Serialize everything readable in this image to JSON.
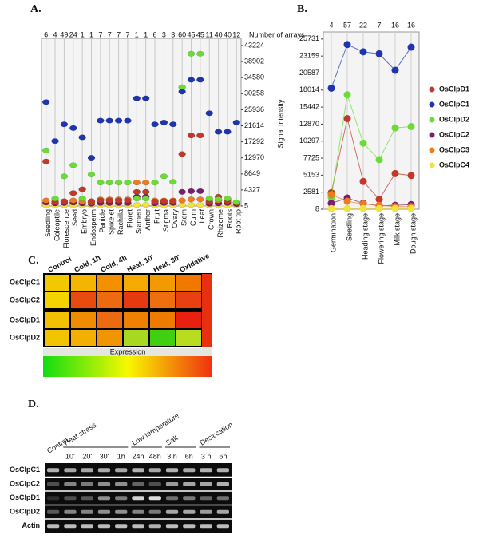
{
  "chart_data": [
    {
      "type": "dot",
      "panel": "A.",
      "top_axis_label": "Number of arrays",
      "array_counts": [
        6,
        4,
        49,
        24,
        1,
        1,
        7,
        7,
        7,
        7,
        1,
        1,
        6,
        3,
        3,
        60,
        45,
        45,
        11,
        40,
        40,
        12
      ],
      "categories": [
        "Seedling",
        "Coleoptile",
        "Florescence",
        "Seed",
        "Embryo",
        "Endosperm",
        "Panicle",
        "Spikelet",
        "Rachilla",
        "Floret",
        "Stamen",
        "Anther",
        "Fruit",
        "Stigma",
        "Ovary",
        "Stem",
        "Culm",
        "Leaf",
        "Crown",
        "Rhizome",
        "Roots",
        "Root tip"
      ],
      "ylim": [
        5,
        44300
      ],
      "yticks": [
        5,
        4327,
        8649,
        12970,
        17292,
        21614,
        25936,
        30258,
        34580,
        38902,
        43224
      ],
      "series": [
        {
          "color": "#f3e23a",
          "values": [
            200,
            150,
            200,
            200,
            150,
            150,
            200,
            200,
            200,
            200,
            300,
            300,
            150,
            200,
            200,
            300,
            300,
            300,
            150,
            200,
            200,
            150
          ]
        },
        {
          "color": "#7a1f6e",
          "values": [
            900,
            700,
            800,
            900,
            700,
            600,
            800,
            800,
            800,
            800,
            2500,
            2500,
            700,
            800,
            800,
            3800,
            4000,
            4000,
            600,
            700,
            800,
            500
          ]
        },
        {
          "color": "#ee7a22",
          "values": [
            1500,
            1200,
            1300,
            1500,
            1200,
            1000,
            1800,
            1800,
            1800,
            1800,
            6300,
            6300,
            1500,
            1500,
            1500,
            1500,
            1800,
            1800,
            1300,
            1500,
            1800,
            1000
          ]
        },
        {
          "color": "#c0392b",
          "values": [
            12000,
            1000,
            1200,
            3500,
            4500,
            1300,
            1500,
            1500,
            1500,
            1500,
            3800,
            3800,
            1200,
            1300,
            1300,
            14000,
            19000,
            19000,
            1000,
            2500,
            1300,
            800
          ]
        },
        {
          "color": "#6bdc35",
          "values": [
            15000,
            2000,
            8000,
            11000,
            2000,
            8500,
            6300,
            6300,
            6300,
            6300,
            2000,
            2000,
            6300,
            8000,
            6500,
            32000,
            41000,
            41000,
            2000,
            1800,
            2000,
            1000
          ]
        },
        {
          "color": "#1f35b0",
          "values": [
            28000,
            17500,
            22000,
            21000,
            18500,
            13000,
            23000,
            23000,
            23000,
            23000,
            29000,
            29000,
            22000,
            22500,
            22000,
            30800,
            34000,
            34000,
            25000,
            20000,
            20000,
            22500
          ]
        }
      ]
    },
    {
      "type": "line",
      "panel": "B.",
      "y_label": "Signal Intensity",
      "array_counts": [
        4,
        57,
        22,
        7,
        16,
        16
      ],
      "categories": [
        "Germination",
        "Seedling",
        "Heading stage",
        "Flowering stage",
        "Milk stage",
        "Dough stage"
      ],
      "ylim": [
        8,
        26800
      ],
      "yticks": [
        8,
        2581,
        5153,
        7725,
        10297,
        12870,
        15442,
        18014,
        20587,
        23159,
        25731
      ],
      "legend": "right",
      "series": [
        {
          "name": "OsClpD1",
          "color": "#c0392b",
          "values": [
            2500,
            13700,
            4200,
            1500,
            5400,
            5100
          ]
        },
        {
          "name": "OsClpC1",
          "color": "#1f35b0",
          "values": [
            18300,
            24900,
            23800,
            23500,
            21000,
            24500
          ]
        },
        {
          "name": "OsClpD2",
          "color": "#6bdc35",
          "values": [
            1800,
            17300,
            10000,
            7500,
            12300,
            12500
          ]
        },
        {
          "name": "OsClpC2",
          "color": "#7a1f6e",
          "values": [
            900,
            1700,
            900,
            500,
            600,
            700
          ]
        },
        {
          "name": "OsClpC3",
          "color": "#ee7a22",
          "values": [
            2200,
            1200,
            800,
            600,
            400,
            400
          ]
        },
        {
          "name": "OsClpC4",
          "color": "#f3e23a",
          "values": [
            100,
            100,
            100,
            100,
            100,
            100
          ]
        }
      ]
    },
    {
      "type": "heatmap",
      "panel": "C.",
      "columns": [
        "Control",
        "Cold, 1h",
        "Cold, 4h",
        "Heat, 10'",
        "Heat, 30'",
        "Oxidative"
      ],
      "rows": [
        "OsClpC1",
        "OsClpC2",
        "OsClpD1",
        "OsClpD2"
      ],
      "cell_colors": [
        [
          "#f2c800",
          "#f5b400",
          "#f29000",
          "#f4aa00",
          "#f29a00",
          "#f07800"
        ],
        [
          "#f4d400",
          "#e84a10",
          "#ee6a10",
          "#e53a10",
          "#ee6e10",
          "#e84010"
        ],
        [
          "#f2c000",
          "#f08c00",
          "#ee6a10",
          "#f08000",
          "#ef7a00",
          "#e82010"
        ],
        [
          "#f2c400",
          "#f4b000",
          "#f09400",
          "#a8d820",
          "#40d010",
          "#b8dc20"
        ]
      ],
      "colorbar_label": "Expression",
      "colorbar_colors": [
        "#10dd10",
        "#f8f800",
        "#f03010"
      ]
    }
  ],
  "gel": {
    "panel": "D.",
    "groups": [
      {
        "label": "Control",
        "span": [
          0,
          0
        ]
      },
      {
        "label": "Heat stress",
        "span": [
          1,
          4
        ]
      },
      {
        "label": "Low temperature",
        "span": [
          5,
          6
        ]
      },
      {
        "label": "Salt",
        "span": [
          7,
          8
        ]
      },
      {
        "label": "Desiccation",
        "span": [
          9,
          10
        ]
      }
    ],
    "lanes": [
      null,
      "10'",
      "20'",
      "30'",
      "1h",
      "24h",
      "48h",
      "3 h",
      "6h",
      "3 h",
      "6h"
    ],
    "rows": [
      "OsClpC1",
      "OsClpC2",
      "OsClpD1",
      "OsClpD2",
      "Actin"
    ],
    "band_intensity": [
      [
        0.75,
        0.7,
        0.7,
        0.72,
        0.7,
        0.75,
        0.7,
        0.75,
        0.72,
        0.75,
        0.75
      ],
      [
        0.3,
        0.55,
        0.5,
        0.6,
        0.6,
        0.4,
        0.3,
        0.65,
        0.7,
        0.7,
        0.75
      ],
      [
        0.15,
        0.3,
        0.35,
        0.6,
        0.5,
        0.9,
        0.95,
        0.45,
        0.5,
        0.4,
        0.45
      ],
      [
        0.35,
        0.55,
        0.55,
        0.6,
        0.6,
        0.55,
        0.5,
        0.7,
        0.7,
        0.65,
        0.7
      ],
      [
        0.8,
        0.8,
        0.8,
        0.8,
        0.8,
        0.8,
        0.75,
        0.8,
        0.8,
        0.8,
        0.8
      ]
    ]
  }
}
